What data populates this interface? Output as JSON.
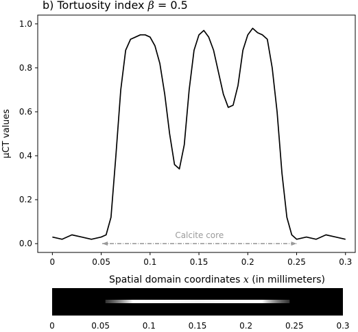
{
  "chart_data": {
    "type": "line",
    "title": {
      "prefix": "b) Tortuosity index ",
      "symbol": "β",
      "suffix": " = 0.5"
    },
    "xlabel": {
      "prefix": "Spatial domain coordinates ",
      "symbol": "x",
      "suffix": " (in millimeters)"
    },
    "ylabel": "μCT values",
    "xlim": [
      -0.015,
      0.31
    ],
    "ylim": [
      -0.04,
      1.04
    ],
    "xticks": [
      "0",
      "0.05",
      "0.1",
      "0.15",
      "0.2",
      "0.25",
      "0.3"
    ],
    "yticks": [
      "0.0",
      "0.2",
      "0.4",
      "0.6",
      "0.8",
      "1.0"
    ],
    "grid": false,
    "series": [
      {
        "color": "#000000",
        "x": [
          0.0,
          0.01,
          0.02,
          0.03,
          0.04,
          0.05,
          0.055,
          0.06,
          0.065,
          0.07,
          0.075,
          0.08,
          0.085,
          0.09,
          0.095,
          0.1,
          0.105,
          0.11,
          0.115,
          0.12,
          0.125,
          0.13,
          0.135,
          0.14,
          0.145,
          0.15,
          0.155,
          0.16,
          0.165,
          0.17,
          0.175,
          0.18,
          0.185,
          0.19,
          0.195,
          0.2,
          0.205,
          0.21,
          0.215,
          0.22,
          0.225,
          0.23,
          0.235,
          0.24,
          0.245,
          0.25,
          0.26,
          0.27,
          0.28,
          0.29,
          0.3
        ],
        "y": [
          0.03,
          0.02,
          0.04,
          0.03,
          0.02,
          0.03,
          0.04,
          0.12,
          0.4,
          0.7,
          0.88,
          0.93,
          0.94,
          0.95,
          0.95,
          0.94,
          0.9,
          0.82,
          0.68,
          0.5,
          0.36,
          0.34,
          0.45,
          0.7,
          0.88,
          0.95,
          0.97,
          0.94,
          0.88,
          0.78,
          0.68,
          0.62,
          0.63,
          0.72,
          0.88,
          0.95,
          0.98,
          0.96,
          0.95,
          0.93,
          0.8,
          0.6,
          0.32,
          0.12,
          0.04,
          0.02,
          0.03,
          0.02,
          0.04,
          0.03,
          0.02
        ]
      }
    ],
    "annotation": {
      "text": "Calcite core",
      "x_start": 0.051,
      "x_end": 0.25,
      "y": 0.0
    },
    "strip": {
      "xticks": [
        "0",
        "0.05",
        "0.1",
        "0.15",
        "0.2",
        "0.25",
        "0.3"
      ],
      "bright_start": 0.055,
      "bright_end": 0.245
    }
  }
}
